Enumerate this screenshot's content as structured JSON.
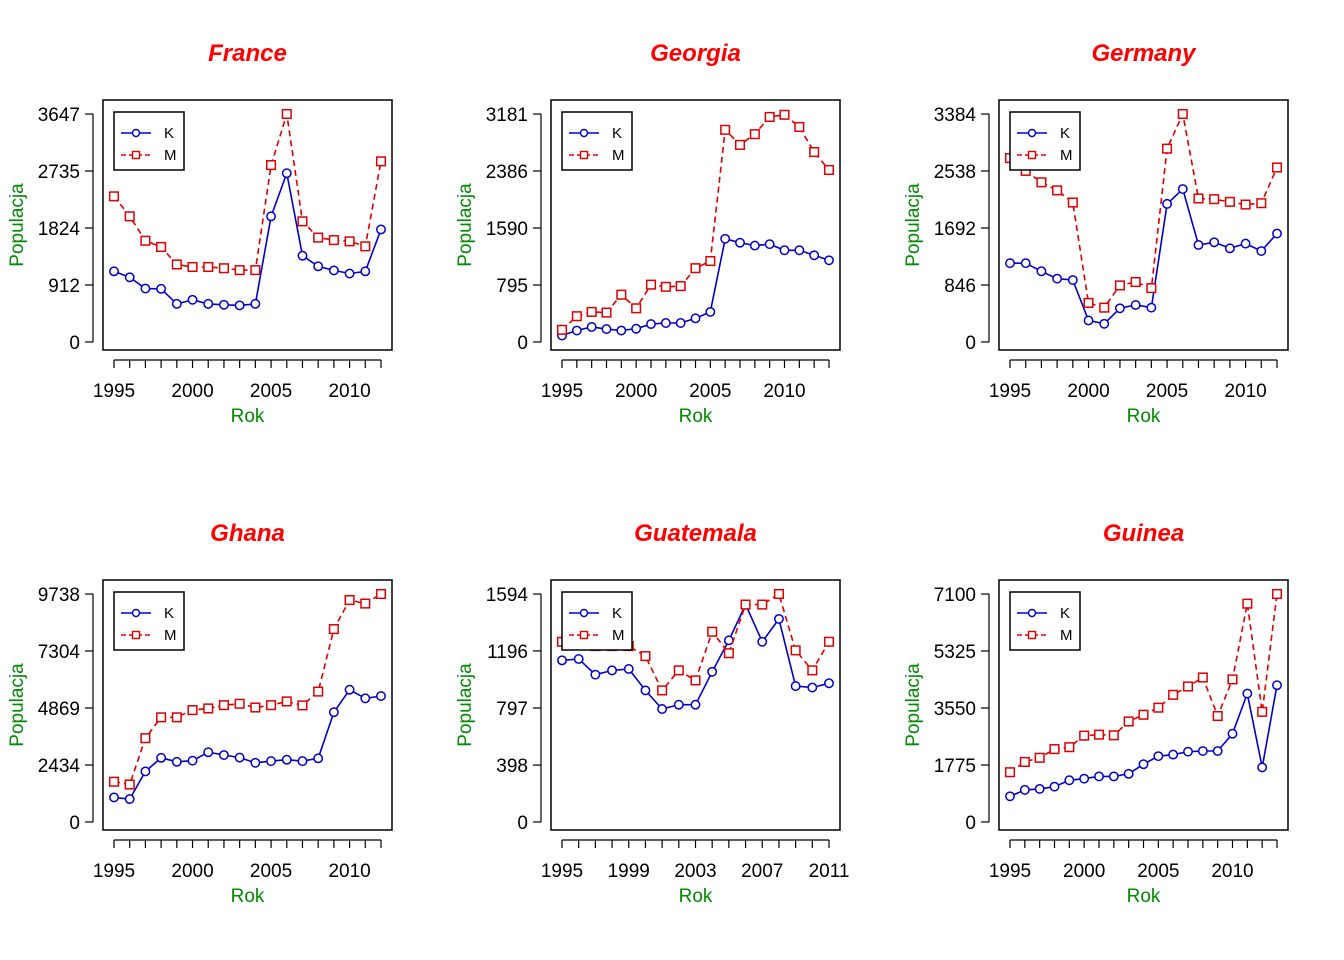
{
  "colors": {
    "K": "#0000cc",
    "M": "#dd0000",
    "title": "#ff0000",
    "axis_label": "#008b00"
  },
  "chart_data": [
    {
      "type": "line",
      "title": "France",
      "xlabel": "Rok",
      "ylabel": "Populacja",
      "xlim": [
        1995,
        2012
      ],
      "ylim": [
        0,
        3647
      ],
      "xticks": [
        "1995",
        "2000",
        "2005",
        "2010"
      ],
      "yticks": [
        "0",
        "912",
        "1824",
        "2735",
        "3647"
      ],
      "x": [
        1995,
        1996,
        1997,
        1998,
        1999,
        2000,
        2001,
        2002,
        2003,
        2004,
        2005,
        2006,
        2007,
        2008,
        2009,
        2010,
        2011,
        2012
      ],
      "legend": "top-left",
      "series": [
        {
          "name": "K",
          "marker": "circle",
          "line": "solid",
          "values": [
            1130,
            1035,
            855,
            850,
            610,
            675,
            610,
            595,
            585,
            610,
            2010,
            2700,
            1380,
            1210,
            1145,
            1095,
            1130,
            1800
          ]
        },
        {
          "name": "M",
          "marker": "square",
          "line": "dashed",
          "values": [
            2330,
            2010,
            1620,
            1520,
            1240,
            1200,
            1200,
            1180,
            1150,
            1150,
            2830,
            3647,
            1930,
            1670,
            1630,
            1610,
            1530,
            2890
          ]
        }
      ]
    },
    {
      "type": "line",
      "title": "Georgia",
      "xlabel": "Rok",
      "ylabel": "Populacja",
      "xlim": [
        1995,
        2013
      ],
      "ylim": [
        0,
        3181
      ],
      "xticks": [
        "1995",
        "2000",
        "2005",
        "2010"
      ],
      "yticks": [
        "0",
        "795",
        "1590",
        "2386",
        "3181"
      ],
      "x": [
        1995,
        1996,
        1997,
        1998,
        1999,
        2000,
        2001,
        2002,
        2003,
        2004,
        2005,
        2006,
        2007,
        2008,
        2009,
        2010,
        2011,
        2012,
        2013
      ],
      "legend": "top-left",
      "series": [
        {
          "name": "K",
          "marker": "circle",
          "line": "solid",
          "values": [
            90,
            160,
            210,
            180,
            160,
            185,
            250,
            265,
            265,
            330,
            420,
            1440,
            1385,
            1345,
            1365,
            1280,
            1280,
            1210,
            1140
          ]
        },
        {
          "name": "M",
          "marker": "square",
          "line": "dashed",
          "values": [
            170,
            360,
            420,
            410,
            660,
            470,
            800,
            770,
            780,
            1030,
            1130,
            2960,
            2750,
            2900,
            3140,
            3170,
            3000,
            2650,
            2400
          ]
        }
      ]
    },
    {
      "type": "line",
      "title": "Germany",
      "xlabel": "Rok",
      "ylabel": "Populacja",
      "xlim": [
        1995,
        2012
      ],
      "ylim": [
        0,
        3384
      ],
      "xticks": [
        "1995",
        "2000",
        "2005",
        "2010"
      ],
      "yticks": [
        "0",
        "846",
        "1692",
        "2538",
        "3384"
      ],
      "x": [
        1995,
        1996,
        1997,
        1998,
        1999,
        2000,
        2001,
        2002,
        2003,
        2004,
        2005,
        2006,
        2007,
        2008,
        2009,
        2010,
        2011,
        2012
      ],
      "legend": "top-left",
      "series": [
        {
          "name": "K",
          "marker": "circle",
          "line": "solid",
          "values": [
            1170,
            1170,
            1050,
            940,
            920,
            320,
            270,
            500,
            550,
            510,
            2050,
            2270,
            1440,
            1480,
            1390,
            1460,
            1350,
            1610
          ]
        },
        {
          "name": "M",
          "marker": "square",
          "line": "dashed",
          "values": [
            2730,
            2540,
            2370,
            2250,
            2070,
            580,
            510,
            840,
            890,
            800,
            2870,
            3384,
            2130,
            2120,
            2080,
            2040,
            2060,
            2590
          ]
        }
      ]
    },
    {
      "type": "line",
      "title": "Ghana",
      "xlabel": "Rok",
      "ylabel": "Populacja",
      "xlim": [
        1995,
        2012
      ],
      "ylim": [
        0,
        9738
      ],
      "xticks": [
        "1995",
        "2000",
        "2005",
        "2010"
      ],
      "yticks": [
        "0",
        "2434",
        "4869",
        "7304",
        "9738"
      ],
      "x": [
        1995,
        1996,
        1997,
        1998,
        1999,
        2000,
        2001,
        2002,
        2003,
        2004,
        2005,
        2006,
        2007,
        2008,
        2009,
        2010,
        2011,
        2012
      ],
      "legend": "top-left",
      "series": [
        {
          "name": "K",
          "marker": "circle",
          "line": "solid",
          "values": [
            1050,
            980,
            2160,
            2740,
            2570,
            2620,
            2980,
            2860,
            2750,
            2530,
            2600,
            2660,
            2600,
            2720,
            4690,
            5650,
            5280,
            5380
          ]
        },
        {
          "name": "M",
          "marker": "square",
          "line": "dashed",
          "values": [
            1720,
            1600,
            3580,
            4470,
            4470,
            4780,
            4850,
            4990,
            5050,
            4890,
            4990,
            5150,
            4980,
            5570,
            8240,
            9480,
            9330,
            9738
          ]
        }
      ]
    },
    {
      "type": "line",
      "title": "Guatemala",
      "xlabel": "Rok",
      "ylabel": "Populacja",
      "xlim": [
        1995,
        2011
      ],
      "ylim": [
        0,
        1594
      ],
      "xticks": [
        "1995",
        "1999",
        "2003",
        "2007",
        "2011"
      ],
      "yticks": [
        "0",
        "398",
        "797",
        "1196",
        "1594"
      ],
      "x": [
        1995,
        1996,
        1997,
        1998,
        1999,
        2000,
        2001,
        2002,
        2003,
        2004,
        2005,
        2006,
        2007,
        2008,
        2009,
        2010,
        2011
      ],
      "legend": "top-left",
      "series": [
        {
          "name": "K",
          "marker": "circle",
          "line": "solid",
          "values": [
            1130,
            1140,
            1030,
            1060,
            1070,
            920,
            790,
            820,
            820,
            1050,
            1270,
            1520,
            1260,
            1420,
            950,
            940,
            970
          ]
        },
        {
          "name": "M",
          "marker": "square",
          "line": "dashed",
          "values": [
            1260,
            1270,
            1230,
            1230,
            1230,
            1160,
            920,
            1060,
            990,
            1330,
            1180,
            1520,
            1520,
            1594,
            1200,
            1060,
            1260
          ]
        }
      ]
    },
    {
      "type": "line",
      "title": "Guinea",
      "xlabel": "Rok",
      "ylabel": "Populacja",
      "xlim": [
        1995,
        2013
      ],
      "ylim": [
        0,
        7100
      ],
      "xticks": [
        "1995",
        "2000",
        "2005",
        "2010"
      ],
      "yticks": [
        "0",
        "1775",
        "3550",
        "5325",
        "7100"
      ],
      "x": [
        1995,
        1996,
        1997,
        1998,
        1999,
        2000,
        2001,
        2002,
        2003,
        2004,
        2005,
        2006,
        2007,
        2008,
        2009,
        2010,
        2011,
        2012,
        2013
      ],
      "legend": "top-left",
      "series": [
        {
          "name": "K",
          "marker": "circle",
          "line": "solid",
          "values": [
            800,
            1000,
            1030,
            1100,
            1300,
            1350,
            1420,
            1420,
            1500,
            1800,
            2050,
            2100,
            2190,
            2210,
            2210,
            2750,
            4000,
            1700,
            4260
          ]
        },
        {
          "name": "M",
          "marker": "square",
          "line": "dashed",
          "values": [
            1550,
            1870,
            2000,
            2270,
            2330,
            2690,
            2720,
            2700,
            3130,
            3340,
            3560,
            3960,
            4220,
            4500,
            3300,
            4440,
            6800,
            3430,
            7100
          ]
        }
      ]
    }
  ]
}
